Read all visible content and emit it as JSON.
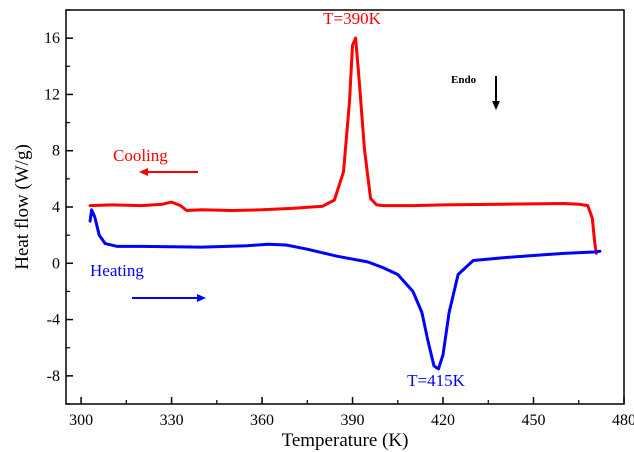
{
  "chart_data": {
    "type": "line",
    "xlabel": "Temperature (K)",
    "ylabel": "Heat flow (W/g)",
    "xlim": [
      295,
      480
    ],
    "ylim": [
      -10,
      18
    ],
    "xticks": [
      "300",
      "330",
      "360",
      "390",
      "420",
      "450",
      "480"
    ],
    "yticks": [
      "-8",
      "-4",
      "0",
      "4",
      "8",
      "12",
      "16"
    ],
    "grid": false,
    "colors": {
      "cooling": "#ff0000",
      "heating": "#0000ff",
      "endo": "#000000"
    },
    "series": [
      {
        "name": "Cooling",
        "color": "#ff0000",
        "x": [
          303,
          310,
          320,
          327,
          330,
          333,
          335,
          340,
          350,
          360,
          370,
          380,
          384,
          387,
          389,
          390,
          391,
          392,
          394,
          396,
          398,
          400,
          410,
          420,
          440,
          460,
          465,
          468,
          469.5,
          470.3,
          470.8
        ],
        "y": [
          4.1,
          4.15,
          4.1,
          4.2,
          4.35,
          4.1,
          3.75,
          3.8,
          3.75,
          3.8,
          3.9,
          4.05,
          4.5,
          6.5,
          11.5,
          15.5,
          16.0,
          13.5,
          8.0,
          4.6,
          4.15,
          4.1,
          4.1,
          4.15,
          4.2,
          4.25,
          4.2,
          4.1,
          3.2,
          1.5,
          0.7
        ]
      },
      {
        "name": "Heating",
        "color": "#0000ff",
        "x": [
          303,
          303.5,
          304.5,
          306,
          308,
          312,
          320,
          340,
          355,
          362,
          368,
          375,
          385,
          395,
          400,
          405,
          410,
          413,
          415,
          417,
          418.5,
          420,
          422,
          425,
          430,
          440,
          450,
          460,
          470,
          472
        ],
        "y": [
          3.0,
          3.8,
          3.3,
          2.0,
          1.4,
          1.2,
          1.2,
          1.15,
          1.25,
          1.35,
          1.3,
          1.0,
          0.5,
          0.1,
          -0.3,
          -0.8,
          -2.0,
          -3.5,
          -5.5,
          -7.3,
          -7.5,
          -6.5,
          -3.5,
          -0.8,
          0.2,
          0.4,
          0.55,
          0.7,
          0.8,
          0.85
        ]
      }
    ],
    "annotations": {
      "cooling_label": "Cooling",
      "heating_label": "Heating",
      "cooling_peak": "T=390K",
      "heating_peak": "T=415K",
      "endo": "Endo"
    }
  }
}
